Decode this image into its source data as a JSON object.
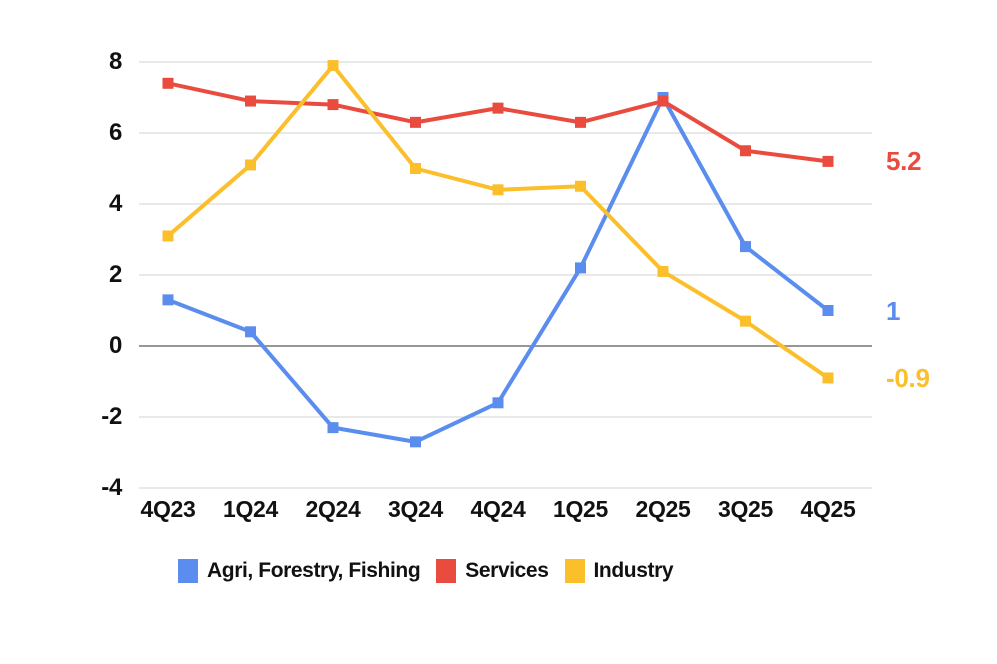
{
  "chart_data": {
    "type": "line",
    "categories": [
      "4Q23",
      "1Q24",
      "2Q24",
      "3Q24",
      "4Q24",
      "1Q25",
      "2Q25",
      "3Q25",
      "4Q25"
    ],
    "series": [
      {
        "name": "Agri, Forestry, Fishing",
        "color": "#5b8def",
        "values": [
          1.3,
          0.4,
          -2.3,
          -2.7,
          -1.6,
          2.2,
          7.0,
          2.8,
          1.0
        ],
        "end_label": "1"
      },
      {
        "name": "Services",
        "color": "#e94c3f",
        "values": [
          7.4,
          6.9,
          6.8,
          6.3,
          6.7,
          6.3,
          6.9,
          5.5,
          5.2
        ],
        "end_label": "5.2"
      },
      {
        "name": "Industry",
        "color": "#fcbf2c",
        "values": [
          3.1,
          5.1,
          7.9,
          5.0,
          4.4,
          4.5,
          2.1,
          0.7,
          -0.9
        ],
        "end_label": "-0.9"
      }
    ],
    "title": "",
    "xlabel": "",
    "ylabel": "",
    "y_ticks": [
      8,
      6,
      4,
      2,
      0,
      -2,
      -4
    ],
    "ylim": [
      -4,
      8
    ],
    "grid": true,
    "marker": "square",
    "legend_position": "bottom"
  },
  "style": {
    "background": "#ffffff",
    "grid_color": "#dcdcdc",
    "zero_line_color": "#979797",
    "text_color": "#111111"
  }
}
